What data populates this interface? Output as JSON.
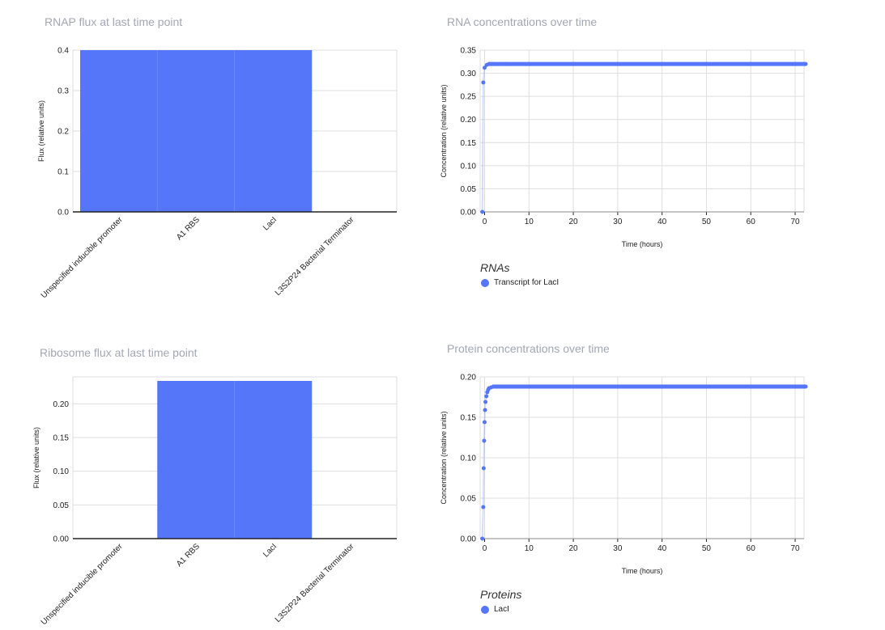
{
  "colors": {
    "series": "#5576f9",
    "grid": "#dedede",
    "axis": "#222222",
    "title": "#a3a7b3"
  },
  "chart_data": [
    {
      "type": "bar",
      "title": "RNAP flux at last time point",
      "ylabel": "Flux (relative units)",
      "xlabel": "",
      "categories": [
        "Unspecified inducible promoter",
        "A1 RBS",
        "LacI",
        "L3S2P24 Bacterial Terminator"
      ],
      "values": [
        0.4,
        0.4,
        0.4,
        0.0
      ],
      "ylim": [
        0,
        0.4
      ],
      "yticks": [
        "0.0",
        "0.1",
        "0.2",
        "0.3",
        "0.4"
      ],
      "grid": true
    },
    {
      "type": "line",
      "title": "RNA concentrations over time",
      "xlabel": "Time (hours)",
      "ylabel": "Concentration (relative units)",
      "xlim": [
        -1,
        72
      ],
      "ylim": [
        0,
        0.35
      ],
      "xticks": [
        "0",
        "10",
        "20",
        "30",
        "40",
        "50",
        "60",
        "70"
      ],
      "yticks": [
        "0.00",
        "0.05",
        "0.10",
        "0.15",
        "0.20",
        "0.25",
        "0.30",
        "0.35"
      ],
      "grid": true,
      "legend_title": "RNAs",
      "legend_position": "bottom-left",
      "series": [
        {
          "name": "Transcript for LacI",
          "x": [
            -0.5,
            -0.3,
            0,
            0.5,
            1,
            2,
            5,
            10,
            20,
            30,
            40,
            50,
            60,
            70,
            72
          ],
          "y": [
            0,
            0.28,
            0.312,
            0.318,
            0.32,
            0.32,
            0.32,
            0.32,
            0.32,
            0.32,
            0.32,
            0.32,
            0.32,
            0.32,
            0.32
          ]
        }
      ]
    },
    {
      "type": "bar",
      "title": "Ribosome flux at last time point",
      "ylabel": "Flux (relative units)",
      "xlabel": "",
      "categories": [
        "Unspecified inducible promoter",
        "A1 RBS",
        "LacI",
        "L3S2P24 Bacterial Terminator"
      ],
      "values": [
        0.0,
        0.234,
        0.234,
        0.0
      ],
      "ylim": [
        0,
        0.24
      ],
      "yticks": [
        "0.00",
        "0.05",
        "0.10",
        "0.15",
        "0.20"
      ],
      "grid": true
    },
    {
      "type": "line",
      "title": "Protein concentrations over time",
      "xlabel": "Time (hours)",
      "ylabel": "Concentration (relative units)",
      "xlim": [
        -1,
        72
      ],
      "ylim": [
        0,
        0.2
      ],
      "xticks": [
        "0",
        "10",
        "20",
        "30",
        "40",
        "50",
        "60",
        "70"
      ],
      "yticks": [
        "0.00",
        "0.05",
        "0.10",
        "0.15",
        "0.20"
      ],
      "grid": true,
      "legend_title": "Proteins",
      "legend_position": "bottom-left",
      "series": [
        {
          "name": "LacI",
          "x": [
            -0.5,
            -0.3,
            -0.2,
            -0.1,
            0,
            0.1,
            0.2,
            0.4,
            0.6,
            0.8,
            1,
            1.5,
            2,
            3,
            5,
            10,
            20,
            30,
            40,
            50,
            60,
            70,
            72
          ],
          "y": [
            0,
            0.039,
            0.087,
            0.121,
            0.144,
            0.159,
            0.169,
            0.176,
            0.181,
            0.184,
            0.186,
            0.187,
            0.188,
            0.188,
            0.188,
            0.188,
            0.188,
            0.188,
            0.188,
            0.188,
            0.188,
            0.188,
            0.188
          ]
        }
      ]
    }
  ]
}
